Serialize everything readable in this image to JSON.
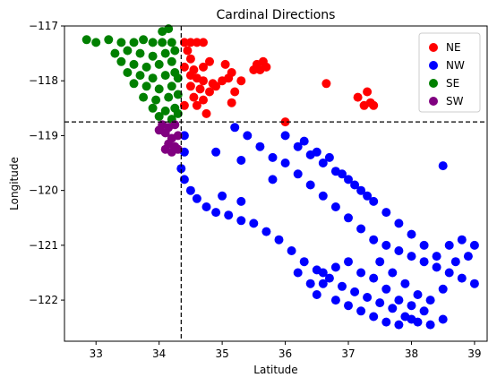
{
  "chart_data": {
    "type": "scatter",
    "title": "Cardinal Directions",
    "xlabel": "Latitude",
    "ylabel": "Longitude",
    "xlim": [
      32.5,
      39.2
    ],
    "ylim": [
      -122.75,
      -117.0
    ],
    "xticks": [
      33,
      34,
      35,
      36,
      37,
      38,
      39
    ],
    "yticks": [
      -117,
      -118,
      -119,
      -120,
      -121,
      -122
    ],
    "reference_lines": {
      "vertical_x": 34.35,
      "horizontal_y": -118.75,
      "style": "dashed"
    },
    "legend": {
      "placement": "top-right"
    },
    "series": [
      {
        "name": "NE",
        "color": "#ff0000",
        "points": [
          [
            34.4,
            -117.3
          ],
          [
            34.5,
            -117.3
          ],
          [
            34.6,
            -117.3
          ],
          [
            34.7,
            -117.3
          ],
          [
            34.45,
            -117.45
          ],
          [
            34.5,
            -117.6
          ],
          [
            34.4,
            -117.75
          ],
          [
            34.55,
            -117.8
          ],
          [
            34.7,
            -117.75
          ],
          [
            34.8,
            -117.65
          ],
          [
            34.5,
            -117.9
          ],
          [
            34.6,
            -117.95
          ],
          [
            34.7,
            -118.0
          ],
          [
            34.85,
            -118.05
          ],
          [
            34.5,
            -118.1
          ],
          [
            34.65,
            -118.15
          ],
          [
            34.8,
            -118.2
          ],
          [
            34.9,
            -118.1
          ],
          [
            35.0,
            -118.0
          ],
          [
            35.1,
            -117.95
          ],
          [
            34.55,
            -118.3
          ],
          [
            34.7,
            -118.35
          ],
          [
            34.4,
            -118.45
          ],
          [
            34.6,
            -118.45
          ],
          [
            34.75,
            -118.6
          ],
          [
            35.05,
            -117.7
          ],
          [
            35.15,
            -117.85
          ],
          [
            35.3,
            -118.0
          ],
          [
            35.2,
            -118.2
          ],
          [
            35.15,
            -118.4
          ],
          [
            35.55,
            -117.7
          ],
          [
            35.6,
            -117.8
          ],
          [
            35.65,
            -117.65
          ],
          [
            35.7,
            -117.75
          ],
          [
            35.5,
            -117.8
          ],
          [
            36.0,
            -118.75
          ],
          [
            36.65,
            -118.05
          ],
          [
            37.15,
            -118.3
          ],
          [
            37.3,
            -118.2
          ],
          [
            37.35,
            -118.4
          ],
          [
            37.4,
            -118.45
          ],
          [
            37.25,
            -118.45
          ]
        ]
      },
      {
        "name": "NW",
        "color": "#0000ff",
        "points": [
          [
            34.4,
            -119.0
          ],
          [
            34.4,
            -119.3
          ],
          [
            34.35,
            -119.6
          ],
          [
            34.4,
            -119.8
          ],
          [
            34.5,
            -120.0
          ],
          [
            34.6,
            -120.15
          ],
          [
            34.75,
            -120.3
          ],
          [
            34.9,
            -120.4
          ],
          [
            35.1,
            -120.45
          ],
          [
            35.3,
            -120.55
          ],
          [
            35.5,
            -120.6
          ],
          [
            35.7,
            -120.75
          ],
          [
            35.9,
            -120.9
          ],
          [
            36.1,
            -121.1
          ],
          [
            36.3,
            -121.3
          ],
          [
            36.5,
            -121.45
          ],
          [
            36.7,
            -121.6
          ],
          [
            36.9,
            -121.75
          ],
          [
            37.1,
            -121.85
          ],
          [
            37.3,
            -121.95
          ],
          [
            37.5,
            -122.05
          ],
          [
            37.7,
            -122.15
          ],
          [
            37.9,
            -122.3
          ],
          [
            38.1,
            -122.4
          ],
          [
            38.3,
            -122.45
          ],
          [
            38.5,
            -122.35
          ],
          [
            36.5,
            -121.9
          ],
          [
            36.6,
            -121.7
          ],
          [
            36.8,
            -122.0
          ],
          [
            37.0,
            -122.1
          ],
          [
            37.2,
            -122.2
          ],
          [
            37.4,
            -122.3
          ],
          [
            37.6,
            -122.4
          ],
          [
            37.8,
            -122.45
          ],
          [
            38.0,
            -122.1
          ],
          [
            38.2,
            -122.2
          ],
          [
            35.2,
            -118.85
          ],
          [
            35.4,
            -119.0
          ],
          [
            35.6,
            -119.2
          ],
          [
            35.8,
            -119.4
          ],
          [
            36.0,
            -119.5
          ],
          [
            36.2,
            -119.7
          ],
          [
            36.4,
            -119.9
          ],
          [
            36.6,
            -120.1
          ],
          [
            36.8,
            -120.3
          ],
          [
            37.0,
            -120.5
          ],
          [
            37.2,
            -120.7
          ],
          [
            37.4,
            -120.9
          ],
          [
            37.6,
            -121.0
          ],
          [
            37.8,
            -121.1
          ],
          [
            38.0,
            -121.2
          ],
          [
            38.2,
            -121.3
          ],
          [
            38.4,
            -121.4
          ],
          [
            38.6,
            -121.5
          ],
          [
            38.8,
            -121.6
          ],
          [
            39.0,
            -121.7
          ],
          [
            36.0,
            -119.0
          ],
          [
            36.2,
            -119.2
          ],
          [
            36.4,
            -119.35
          ],
          [
            36.6,
            -119.5
          ],
          [
            36.8,
            -119.65
          ],
          [
            37.0,
            -119.8
          ],
          [
            37.2,
            -120.0
          ],
          [
            37.4,
            -120.2
          ],
          [
            37.6,
            -120.4
          ],
          [
            37.8,
            -120.6
          ],
          [
            38.0,
            -120.8
          ],
          [
            38.2,
            -121.0
          ],
          [
            38.4,
            -121.2
          ],
          [
            38.6,
            -121.0
          ],
          [
            38.8,
            -120.9
          ],
          [
            39.0,
            -121.0
          ],
          [
            38.5,
            -119.55
          ],
          [
            36.3,
            -119.1
          ],
          [
            36.5,
            -119.3
          ],
          [
            36.7,
            -119.4
          ],
          [
            36.9,
            -119.7
          ],
          [
            37.1,
            -119.9
          ],
          [
            37.3,
            -120.1
          ],
          [
            35.0,
            -120.1
          ],
          [
            35.3,
            -120.2
          ],
          [
            34.9,
            -119.3
          ],
          [
            35.3,
            -119.45
          ],
          [
            35.8,
            -119.8
          ],
          [
            37.5,
            -121.3
          ],
          [
            37.7,
            -121.5
          ],
          [
            37.9,
            -121.7
          ],
          [
            38.1,
            -121.9
          ],
          [
            38.3,
            -122.0
          ],
          [
            38.5,
            -121.8
          ],
          [
            38.7,
            -121.3
          ],
          [
            38.9,
            -121.2
          ],
          [
            36.2,
            -121.5
          ],
          [
            36.4,
            -121.7
          ],
          [
            36.6,
            -121.5
          ],
          [
            36.8,
            -121.4
          ],
          [
            37.0,
            -121.3
          ],
          [
            37.2,
            -121.5
          ],
          [
            37.4,
            -121.6
          ],
          [
            37.6,
            -121.8
          ],
          [
            37.8,
            -122.0
          ],
          [
            38.0,
            -122.35
          ]
        ]
      },
      {
        "name": "SE",
        "color": "#008000",
        "points": [
          [
            32.85,
            -117.25
          ],
          [
            33.0,
            -117.3
          ],
          [
            33.2,
            -117.25
          ],
          [
            33.4,
            -117.3
          ],
          [
            33.6,
            -117.3
          ],
          [
            33.75,
            -117.25
          ],
          [
            33.9,
            -117.3
          ],
          [
            34.05,
            -117.3
          ],
          [
            34.2,
            -117.3
          ],
          [
            33.5,
            -117.45
          ],
          [
            33.7,
            -117.5
          ],
          [
            33.9,
            -117.55
          ],
          [
            34.1,
            -117.5
          ],
          [
            34.25,
            -117.45
          ],
          [
            33.4,
            -117.65
          ],
          [
            33.6,
            -117.7
          ],
          [
            33.8,
            -117.75
          ],
          [
            34.0,
            -117.7
          ],
          [
            34.2,
            -117.65
          ],
          [
            33.5,
            -117.85
          ],
          [
            33.7,
            -117.9
          ],
          [
            33.9,
            -117.95
          ],
          [
            34.1,
            -117.9
          ],
          [
            34.25,
            -117.85
          ],
          [
            33.6,
            -118.05
          ],
          [
            33.8,
            -118.1
          ],
          [
            34.0,
            -118.15
          ],
          [
            34.2,
            -118.1
          ],
          [
            33.75,
            -118.3
          ],
          [
            33.95,
            -118.35
          ],
          [
            34.15,
            -118.3
          ],
          [
            34.3,
            -118.25
          ],
          [
            33.9,
            -118.5
          ],
          [
            34.1,
            -118.55
          ],
          [
            34.25,
            -118.5
          ],
          [
            34.0,
            -118.65
          ],
          [
            34.2,
            -118.7
          ],
          [
            34.3,
            -118.6
          ],
          [
            34.05,
            -117.1
          ],
          [
            34.15,
            -117.05
          ],
          [
            33.3,
            -117.5
          ],
          [
            34.3,
            -117.95
          ]
        ]
      },
      {
        "name": "SW",
        "color": "#800080",
        "points": [
          [
            34.05,
            -118.8
          ],
          [
            34.15,
            -118.85
          ],
          [
            34.25,
            -118.8
          ],
          [
            34.1,
            -118.95
          ],
          [
            34.2,
            -119.05
          ],
          [
            34.3,
            -119.0
          ],
          [
            34.15,
            -119.15
          ],
          [
            34.25,
            -119.2
          ],
          [
            34.1,
            -119.25
          ],
          [
            34.2,
            -119.3
          ],
          [
            34.3,
            -119.25
          ],
          [
            34.0,
            -118.9
          ]
        ]
      }
    ]
  }
}
